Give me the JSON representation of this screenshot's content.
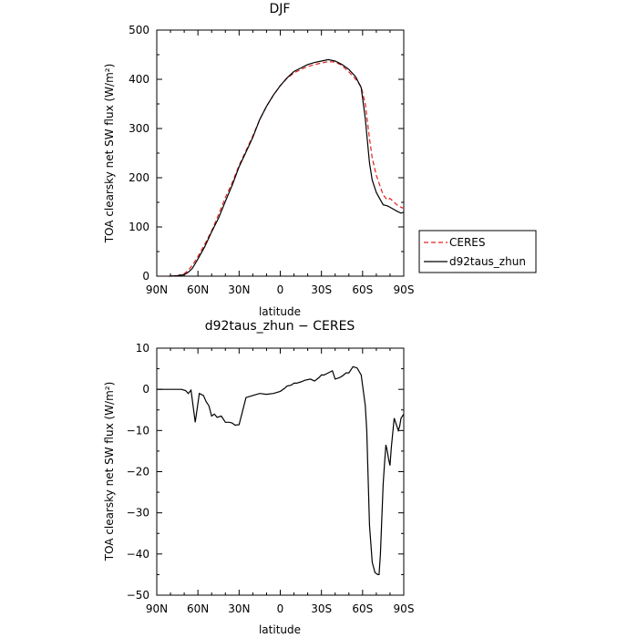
{
  "chart_data": [
    {
      "type": "line",
      "title": "DJF",
      "xlabel": "latitude",
      "ylabel": "TOA clearsky net SW flux (W/m²)",
      "xlim": [
        -90,
        90
      ],
      "ylim": [
        0,
        500
      ],
      "xticks": [
        "90N",
        "60N",
        "30N",
        "0",
        "30S",
        "60S",
        "90S"
      ],
      "yticks": [
        "0",
        "100",
        "200",
        "300",
        "400",
        "500"
      ],
      "grid": false,
      "legend": "right",
      "series": [
        {
          "name": "CERES",
          "color": "#e02020",
          "dash": true,
          "x": [
            -81,
            -75,
            -70,
            -67,
            -64,
            -60,
            -55,
            -50,
            -45,
            -40,
            -35,
            -30,
            -25,
            -20,
            -15,
            -10,
            -5,
            0,
            5,
            10,
            15,
            20,
            25,
            30,
            35,
            40,
            45,
            50,
            55,
            59,
            62,
            65,
            67,
            70,
            75,
            78,
            80,
            85,
            88,
            90
          ],
          "y": [
            0,
            1,
            5,
            12,
            22,
            40,
            65,
            92,
            125,
            160,
            190,
            225,
            255,
            285,
            318,
            345,
            368,
            387,
            402,
            413,
            420,
            426,
            430,
            433,
            436,
            435,
            428,
            415,
            400,
            385,
            350,
            280,
            240,
            205,
            165,
            155,
            158,
            145,
            140,
            138
          ]
        },
        {
          "name": "d92taus_zhun",
          "color": "#000000",
          "dash": false,
          "x": [
            -81,
            -75,
            -70,
            -67,
            -64,
            -60,
            -55,
            -50,
            -45,
            -40,
            -35,
            -30,
            -25,
            -20,
            -15,
            -10,
            -5,
            0,
            5,
            10,
            15,
            20,
            25,
            30,
            35,
            40,
            45,
            50,
            55,
            59,
            62,
            65,
            67,
            70,
            75,
            78,
            80,
            85,
            88,
            90
          ],
          "y": [
            0,
            1,
            3,
            8,
            16,
            35,
            60,
            90,
            118,
            152,
            185,
            222,
            252,
            282,
            318,
            345,
            368,
            387,
            403,
            416,
            423,
            430,
            434,
            437,
            440,
            437,
            430,
            420,
            405,
            383,
            320,
            230,
            195,
            170,
            145,
            143,
            140,
            132,
            128,
            130
          ]
        }
      ]
    },
    {
      "type": "line",
      "title": "d92taus_zhun − CERES",
      "xlabel": "latitude",
      "ylabel": "TOA clearsky net SW flux (W/m²)",
      "xlim": [
        -90,
        90
      ],
      "ylim": [
        -50,
        10
      ],
      "xticks": [
        "90N",
        "60N",
        "30N",
        "0",
        "30S",
        "60S",
        "90S"
      ],
      "yticks": [
        "−50",
        "−40",
        "−30",
        "−20",
        "−10",
        "0",
        "10"
      ],
      "grid": false,
      "series": [
        {
          "color": "#000000",
          "x": [
            -90,
            -81,
            -75,
            -72,
            -69,
            -67,
            -65,
            -62,
            -59,
            -56,
            -54,
            -52,
            -50,
            -48,
            -46,
            -43,
            -40,
            -37,
            -35,
            -33,
            -30,
            -28,
            -25,
            -20,
            -15,
            -10,
            -5,
            0,
            3,
            5,
            8,
            10,
            12,
            15,
            18,
            22,
            25,
            28,
            30,
            32,
            35,
            38,
            40,
            43,
            45,
            48,
            50,
            53,
            56,
            59,
            62,
            63,
            65,
            67,
            69,
            71,
            72,
            73,
            75,
            76,
            77,
            78,
            79,
            80,
            81,
            83,
            84,
            85,
            86,
            87,
            88,
            90
          ],
          "y": [
            0,
            0,
            0,
            0,
            -0.3,
            -1,
            -0.2,
            -8,
            -1,
            -1.5,
            -3,
            -4,
            -6.5,
            -6,
            -6.8,
            -6.5,
            -8,
            -8,
            -8.2,
            -8.7,
            -8.6,
            -6,
            -2,
            -1.5,
            -1,
            -1.2,
            -1,
            -0.5,
            0.2,
            0.8,
            1,
            1.5,
            1.5,
            1.8,
            2.2,
            2.5,
            2,
            2.8,
            3.5,
            3.5,
            4,
            4.5,
            2.5,
            2.8,
            3.2,
            4,
            4,
            5.5,
            5.2,
            3.5,
            -4,
            -10,
            -33,
            -42,
            -44.5,
            -45,
            -45,
            -40,
            -23,
            -18,
            -13.5,
            -15,
            -17,
            -18.5,
            -14,
            -7,
            -8,
            -9,
            -10,
            -9,
            -7,
            -6
          ]
        }
      ]
    }
  ]
}
